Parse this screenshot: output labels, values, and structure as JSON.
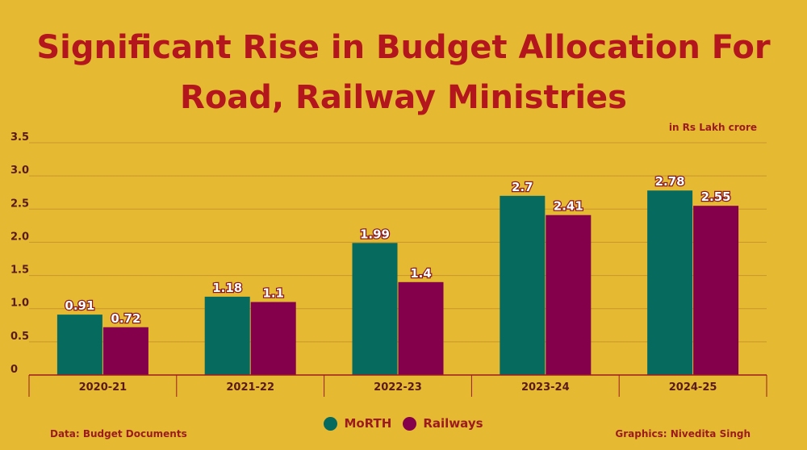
{
  "chart_data": {
    "type": "bar",
    "title": "Significant Rise in Budget Allocation For Road, Railway Ministries",
    "unit_note": "in Rs Lakh crore",
    "categories": [
      "2020-21",
      "2021-22",
      "2022-23",
      "2023-24",
      "2024-25"
    ],
    "series": [
      {
        "name": "MoRTH",
        "color": "#066A5E",
        "values": [
          0.91,
          1.18,
          1.99,
          2.7,
          2.78
        ],
        "labels": [
          "0.91",
          "1.18",
          "1.99",
          "2.7",
          "2.78"
        ]
      },
      {
        "name": "Railways",
        "color": "#85004A",
        "values": [
          0.72,
          1.1,
          1.4,
          2.41,
          2.55
        ],
        "labels": [
          "0.72",
          "1.1",
          "1.4",
          "2.41",
          "2.55"
        ]
      }
    ],
    "ylim": [
      0,
      3.5
    ],
    "yticks": [
      "0",
      "0.5",
      "1.0",
      "1.5",
      "2.0",
      "2.5",
      "3.0",
      "3.5"
    ],
    "ytick_values": [
      0,
      0.5,
      1.0,
      1.5,
      2.0,
      2.5,
      3.0,
      3.5
    ],
    "grid": true,
    "legend": "bottom-center"
  },
  "footer": {
    "source": "Data: Budget Documents",
    "credit": "Graphics: Nivedita Singh"
  }
}
